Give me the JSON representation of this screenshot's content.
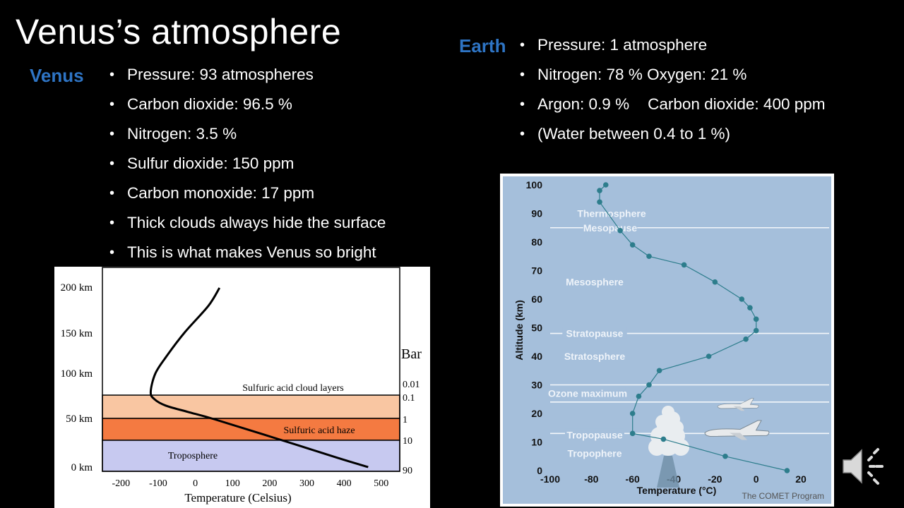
{
  "slide": {
    "title": "Venus’s atmosphere",
    "venus": {
      "label": "Venus",
      "bullets": [
        "Pressure:  93 atmospheres",
        "Carbon dioxide: 96.5 %",
        "Nitrogen: 3.5 %",
        "Sulfur dioxide: 150 ppm",
        "Carbon monoxide: 17 ppm",
        "Thick clouds always hide the surface",
        "This is what makes Venus so bright"
      ]
    },
    "earth": {
      "label": "Earth",
      "pressure": "Pressure:  1 atmosphere",
      "nitrogen": "Nitrogen: 78 %",
      "oxygen": "Oxygen: 21 %",
      "argon": "Argon: 0.9 %",
      "co2": "Carbon dioxide: 400 ppm",
      "water": "(Water between 0.4 to 1 %)"
    }
  },
  "chart_data": [
    {
      "type": "line",
      "chart": "venus-temperature-profile",
      "xlabel": "Temperature (Celsius)",
      "x_ticks": [
        "-200",
        "-100",
        "0",
        "100",
        "200",
        "300",
        "400",
        "500"
      ],
      "y_ticks": [
        "0 km",
        "50 km",
        "100 km",
        "150 km",
        "200 km"
      ],
      "bar_title": "Bar",
      "bar_ticks": [
        "0.01",
        "0.1",
        "1",
        "10",
        "90"
      ],
      "layers": [
        {
          "label": "Sulfuric acid cloud layers",
          "color": "#f9c6a2"
        },
        {
          "label": "Sulfuric acid haze",
          "color": "#f47a41"
        },
        {
          "label": "Troposphere",
          "color": "#c7c9f0"
        }
      ],
      "x": [
        465,
        380,
        200,
        50,
        -20,
        -80,
        -110,
        -120,
        -108,
        -80,
        -30,
        35,
        65
      ],
      "y": [
        0,
        10,
        32,
        50,
        58,
        65,
        72,
        80,
        100,
        120,
        150,
        180,
        200
      ],
      "xlim": [
        -250,
        550
      ],
      "ylim": [
        0,
        210
      ]
    },
    {
      "type": "line",
      "chart": "earth-temperature-profile",
      "xlabel": "Temperature (°C)",
      "ylabel": "Altitude (km)",
      "credit": "The COMET Program",
      "x_ticks": [
        "-100",
        "-80",
        "-60",
        "-40",
        "-20",
        "0",
        "20"
      ],
      "y_ticks": [
        "0",
        "10",
        "20",
        "30",
        "40",
        "50",
        "60",
        "70",
        "80",
        "90",
        "100"
      ],
      "layer_labels": [
        {
          "text": "Thermosphere",
          "alt": 90
        },
        {
          "text": "Mesopause",
          "alt": 85
        },
        {
          "text": "Mesosphere",
          "alt": 66
        },
        {
          "text": "Stratopause",
          "alt": 48
        },
        {
          "text": "Stratosphere",
          "alt": 40
        },
        {
          "text": "Ozone maximum",
          "alt": 27
        },
        {
          "text": "Tropopause",
          "alt": 12.5
        },
        {
          "text": "Tropophere",
          "alt": 6
        }
      ],
      "boundary_lines": [
        85,
        48,
        30,
        24,
        13
      ],
      "x": [
        15,
        -15,
        -45,
        -60,
        -60,
        -57,
        -52,
        -47,
        -23,
        -5,
        0,
        0,
        -3,
        -7,
        -20,
        -35,
        -52,
        -60,
        -66,
        -76,
        -76,
        -73
      ],
      "y": [
        0,
        5,
        11,
        13,
        20,
        26,
        30,
        35,
        40,
        46,
        49,
        53,
        57,
        60,
        66,
        72,
        75,
        79,
        84,
        94,
        98,
        100
      ],
      "xlim": [
        -100,
        20
      ],
      "ylim": [
        0,
        100
      ]
    }
  ]
}
